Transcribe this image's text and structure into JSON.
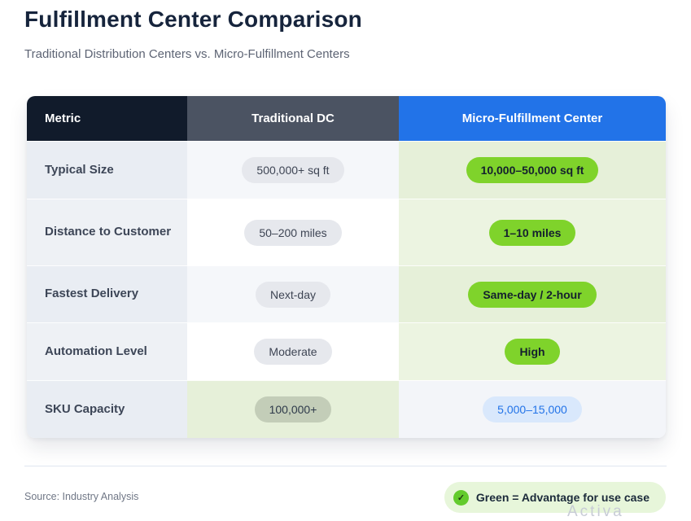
{
  "header": {
    "title": "Fulfillment Center Comparison",
    "subtitle": "Traditional Distribution Centers vs. Micro-Fulfillment Centers"
  },
  "chart_data": {
    "type": "table",
    "title": "Fulfillment Center Comparison",
    "subtitle": "Traditional Distribution Centers vs. Micro-Fulfillment Centers",
    "columns": [
      "Metric",
      "Traditional DC",
      "Micro-Fulfillment Center"
    ],
    "rows": [
      {
        "metric": "Typical Size",
        "traditional": "500,000+ sq ft",
        "mfc": "10,000–50,000 sq ft",
        "advantage": "mfc"
      },
      {
        "metric": "Distance to Customer",
        "traditional": "50–200 miles",
        "mfc": "1–10 miles",
        "advantage": "mfc"
      },
      {
        "metric": "Fastest Delivery",
        "traditional": "Next-day",
        "mfc": "Same-day / 2-hour",
        "advantage": "mfc"
      },
      {
        "metric": "Automation Level",
        "traditional": "Moderate",
        "mfc": "High",
        "advantage": "mfc"
      },
      {
        "metric": "SKU Capacity",
        "traditional": "100,000+",
        "mfc": "5,000–15,000",
        "advantage": "traditional"
      }
    ],
    "legend": "Green = Advantage for use case",
    "source": "Source: Industry Analysis",
    "layout_hints": {
      "legend_position": "bottom-right",
      "grid": "off",
      "highlight_meaning": "green cell/pill marks advantaged option"
    }
  },
  "footer": {
    "source": "Source: Industry Analysis",
    "legend_icon": "check-circle",
    "legend_check_glyph": "✓",
    "legend_label": "Green = Advantage for use case",
    "watermark": "Activa"
  },
  "colors": {
    "header_navy": "#111b2b",
    "header_slate": "#4b5362",
    "header_blue": "#2273e8",
    "advantage_green": "#7fd32b",
    "advantage_cell_green": "#e6f0d9",
    "neutral_pill_gray": "#e6e8ed",
    "blue_pill": "#d9e8fc",
    "legend_bg": "#e7f6da"
  }
}
